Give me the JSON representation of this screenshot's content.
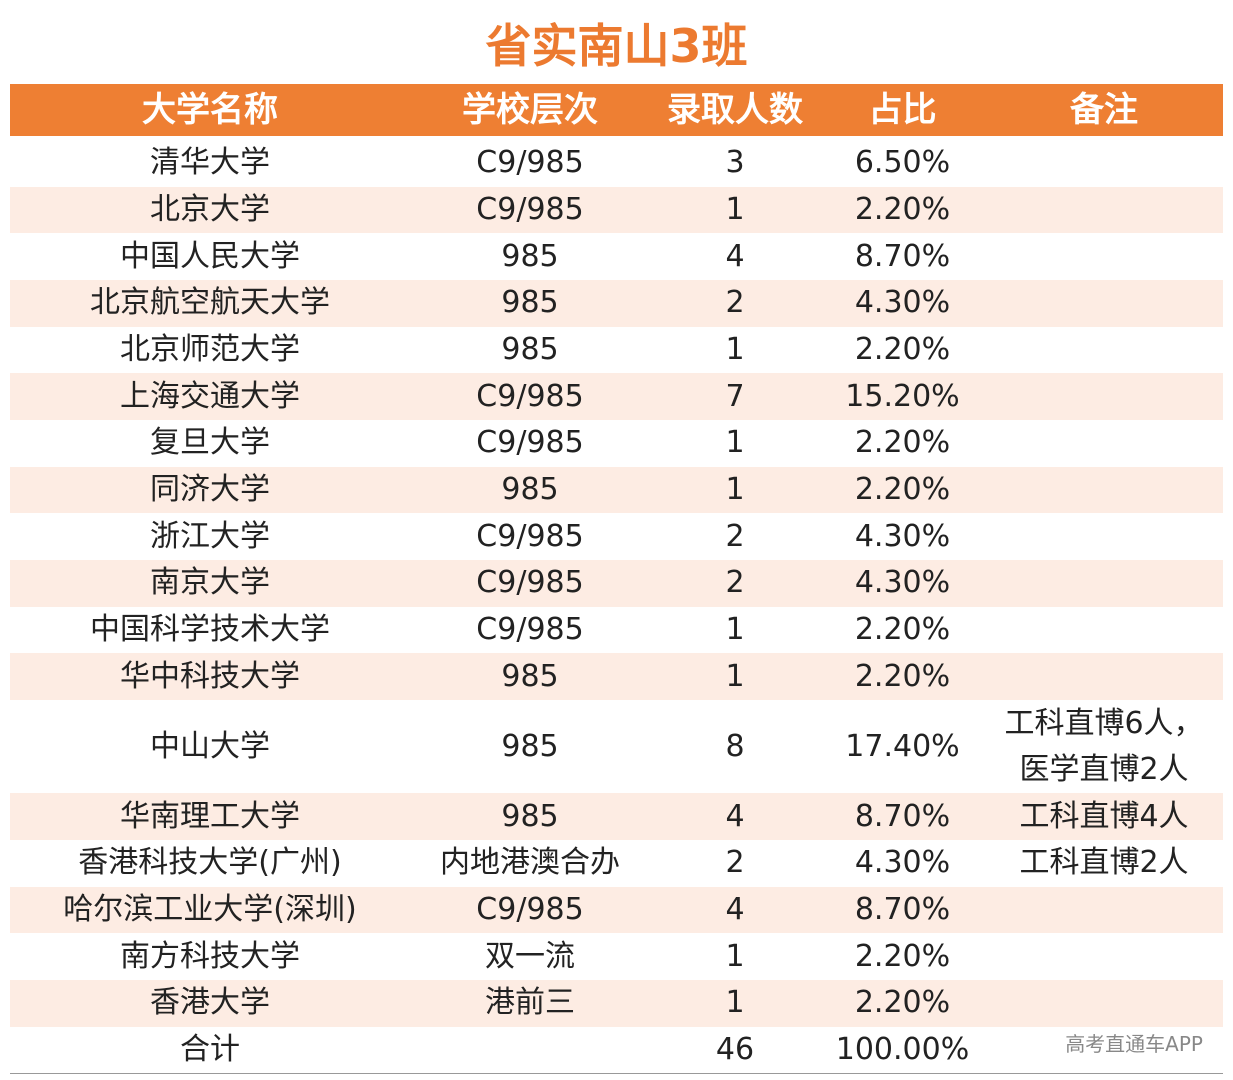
{
  "title": "省实南山3班",
  "table": {
    "header": [
      "大学名称",
      "学校层次",
      "录取人数",
      "占比",
      "备注"
    ],
    "rows": [
      [
        "清华大学",
        "C9/985",
        "3",
        "6.50%",
        ""
      ],
      [
        "北京大学",
        "C9/985",
        "1",
        "2.20%",
        ""
      ],
      [
        "中国人民大学",
        "985",
        "4",
        "8.70%",
        ""
      ],
      [
        "北京航空航天大学",
        "985",
        "2",
        "4.30%",
        ""
      ],
      [
        "北京师范大学",
        "985",
        "1",
        "2.20%",
        ""
      ],
      [
        "上海交通大学",
        "C9/985",
        "7",
        "15.20%",
        ""
      ],
      [
        "复旦大学",
        "C9/985",
        "1",
        "2.20%",
        ""
      ],
      [
        "同济大学",
        "985",
        "1",
        "2.20%",
        ""
      ],
      [
        "浙江大学",
        "C9/985",
        "2",
        "4.30%",
        ""
      ],
      [
        "南京大学",
        "C9/985",
        "2",
        "4.30%",
        ""
      ],
      [
        "中国科学技术大学",
        "C9/985",
        "1",
        "2.20%",
        ""
      ],
      [
        "华中科技大学",
        "985",
        "1",
        "2.20%",
        ""
      ],
      [
        "中山大学",
        "985",
        "8",
        "17.40%",
        [
          "工科直博6人，",
          "医学直博2人"
        ]
      ],
      [
        "华南理工大学",
        "985",
        "4",
        "8.70%",
        "工科直博4人"
      ],
      [
        "香港科技大学(广州)",
        "内地港澳合办",
        "2",
        "4.30%",
        "工科直博2人"
      ],
      [
        "哈尔滨工业大学(深圳)",
        "C9/985",
        "4",
        "8.70%",
        ""
      ],
      [
        "南方科技大学",
        "双一流",
        "1",
        "2.20%",
        ""
      ],
      [
        "香港大学",
        "港前三",
        "1",
        "2.20%",
        ""
      ]
    ],
    "total": [
      "合计",
      "",
      "46",
      "100.00%",
      ""
    ]
  },
  "watermark": "高考直通车APP"
}
